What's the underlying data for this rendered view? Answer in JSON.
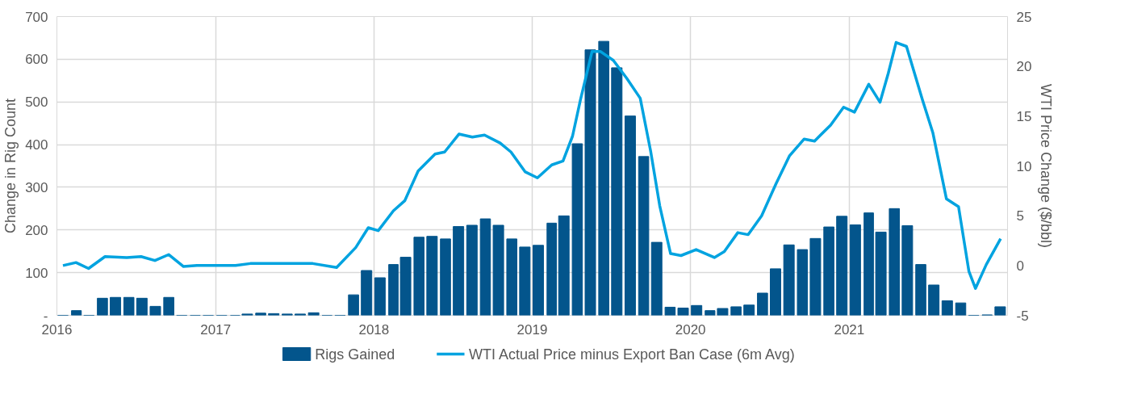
{
  "chart_data": {
    "type": "bar",
    "ylabel": "Change in Rig Count",
    "y2label": "WTI Price Change ($/bbl)",
    "series": [
      {
        "name": "Rigs Gained",
        "color": "#03558c",
        "x": [
          "2016-01-15",
          "2016-02-15",
          "2016-03-15",
          "2016-04-15",
          "2016-05-15",
          "2016-06-15",
          "2016-07-15",
          "2016-08-15",
          "2016-09-15",
          "2016-10-15",
          "2016-11-15",
          "2016-12-15",
          "2017-01-15",
          "2017-02-15",
          "2017-03-15",
          "2017-04-15",
          "2017-05-15",
          "2017-06-15",
          "2017-07-15",
          "2017-08-15",
          "2017-09-15",
          "2017-10-15",
          "2017-11-15",
          "2017-12-15",
          "2018-01-15",
          "2018-02-15",
          "2018-03-15",
          "2018-04-15",
          "2018-05-15",
          "2018-06-15",
          "2018-07-15",
          "2018-08-15",
          "2018-09-15",
          "2018-10-15",
          "2018-11-15",
          "2018-12-15",
          "2019-01-15",
          "2019-02-15",
          "2019-03-15",
          "2019-04-15",
          "2019-05-15",
          "2019-06-15",
          "2019-07-15",
          "2019-08-15",
          "2019-09-15",
          "2019-10-15",
          "2019-11-15",
          "2019-12-15",
          "2020-01-15",
          "2020-02-15",
          "2020-03-15",
          "2020-04-15",
          "2020-05-15",
          "2020-06-15",
          "2020-07-15",
          "2020-08-15",
          "2020-09-15",
          "2020-10-15",
          "2020-11-15",
          "2020-12-15",
          "2021-01-15",
          "2021-02-15",
          "2021-03-15",
          "2021-04-15",
          "2021-05-15",
          "2021-06-15",
          "2021-07-15",
          "2021-08-15",
          "2021-09-15",
          "2021-10-15",
          "2021-11-15",
          "2021-12-15"
        ],
        "values": [
          0,
          11,
          0,
          40,
          42,
          42,
          40,
          21,
          42,
          0,
          0,
          0,
          0,
          0,
          3,
          5,
          4,
          3,
          3,
          6,
          0,
          0,
          48,
          105,
          88,
          119,
          136,
          183,
          185,
          179,
          208,
          211,
          226,
          211,
          179,
          160,
          164,
          216,
          233,
          402,
          622,
          642,
          580,
          467,
          372,
          171,
          19,
          17,
          23,
          11,
          16,
          20,
          24,
          52,
          109,
          165,
          154,
          180,
          207,
          232,
          212,
          240,
          195,
          250,
          210,
          119,
          71,
          34,
          29,
          0,
          1,
          20
        ]
      },
      {
        "name": "WTI Actual Price minus Export Ban Case (6m Avg)",
        "type": "line",
        "axis": "y2",
        "color": "#00a3e0",
        "x": [
          "2016-01-15",
          "2016-02-14",
          "2016-03-14",
          "2016-04-21",
          "2016-06-10",
          "2016-07-13",
          "2016-08-14",
          "2016-09-15",
          "2016-10-19",
          "2016-11-19",
          "2017-02-16",
          "2017-03-22",
          "2017-08-13",
          "2017-10-07",
          "2017-11-20",
          "2017-12-19",
          "2018-01-11",
          "2018-02-15",
          "2018-03-13",
          "2018-04-13",
          "2018-05-22",
          "2018-06-13",
          "2018-07-16",
          "2018-08-16",
          "2018-09-13",
          "2018-10-19",
          "2018-11-13",
          "2018-12-16",
          "2019-01-13",
          "2019-02-15",
          "2019-03-13",
          "2019-04-04",
          "2019-04-22",
          "2019-05-19",
          "2019-06-07",
          "2019-07-07",
          "2019-08-07",
          "2019-09-07",
          "2019-10-01",
          "2019-10-22",
          "2019-11-16",
          "2019-12-10",
          "2020-01-14",
          "2020-02-25",
          "2020-03-19",
          "2020-04-19",
          "2020-05-13",
          "2020-06-13",
          "2020-07-16",
          "2020-08-16",
          "2020-09-19",
          "2020-10-13",
          "2020-11-19",
          "2020-12-19",
          "2021-01-13",
          "2021-02-15",
          "2021-03-13",
          "2021-04-01",
          "2021-04-19",
          "2021-05-13",
          "2021-06-19",
          "2021-07-13",
          "2021-08-13",
          "2021-09-10",
          "2021-10-04",
          "2021-10-19",
          "2021-11-13",
          "2021-12-16"
        ],
        "values": [
          0,
          0.3,
          -0.3,
          0.9,
          0.8,
          0.9,
          0.5,
          1.1,
          -0.1,
          0,
          0,
          0.2,
          0.2,
          -0.2,
          1.8,
          3.8,
          3.5,
          5.5,
          6.5,
          9.5,
          11.2,
          11.4,
          13.2,
          12.9,
          13.1,
          12.3,
          11.4,
          9.4,
          8.8,
          10.1,
          10.5,
          13.0,
          16.6,
          21.5,
          21.5,
          20.6,
          18.8,
          16.8,
          11.5,
          6.0,
          1.2,
          1.0,
          1.6,
          0.8,
          1.4,
          3.3,
          3.1,
          5.0,
          8.2,
          11.0,
          12.7,
          12.5,
          14.1,
          15.9,
          15.4,
          18.2,
          16.4,
          19.3,
          22.4,
          22.0,
          16.6,
          13.3,
          6.7,
          5.9,
          -0.6,
          -2.3,
          0.1,
          2.7
        ]
      }
    ],
    "xlim": [
      "2016-01",
      "2022-01"
    ],
    "xticks": [
      {
        "value": "2016-01",
        "label": "2016"
      },
      {
        "value": "2017-01",
        "label": "2017"
      },
      {
        "value": "2018-01",
        "label": "2018"
      },
      {
        "value": "2019-01",
        "label": "2019"
      },
      {
        "value": "2020-01",
        "label": "2020"
      },
      {
        "value": "2021-01",
        "label": "2021"
      }
    ],
    "ylim": [
      0,
      700
    ],
    "yticks": [
      {
        "value": 0,
        "label": "-"
      },
      100,
      200,
      300,
      400,
      500,
      600,
      700
    ],
    "y2lim": [
      -5,
      25
    ],
    "y2ticks": [
      -5,
      0,
      5,
      10,
      15,
      20,
      25
    ],
    "grid": true,
    "legend": "bottom"
  }
}
